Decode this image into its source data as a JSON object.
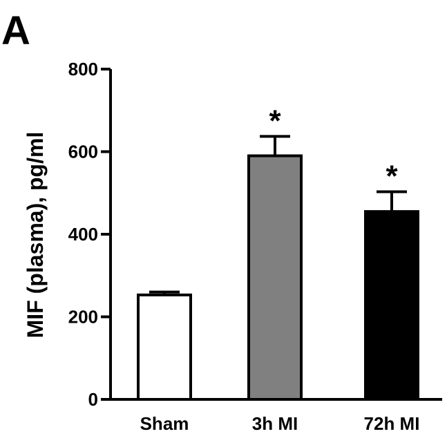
{
  "panel_label": "A",
  "chart_data": {
    "type": "bar",
    "title": "",
    "xlabel": "",
    "ylabel": "MIF (plasma), pg/ml",
    "ylim": [
      0,
      800
    ],
    "yticks": [
      0,
      200,
      400,
      600,
      800
    ],
    "categories": [
      "Sham",
      "3h MI",
      "72h MI"
    ],
    "values": [
      253,
      590,
      455
    ],
    "errors": [
      7,
      47,
      48
    ],
    "significance": [
      "",
      "*",
      "*"
    ],
    "colors": [
      "#ffffff",
      "#808080",
      "#000000"
    ],
    "grid": false,
    "legend": "none"
  }
}
